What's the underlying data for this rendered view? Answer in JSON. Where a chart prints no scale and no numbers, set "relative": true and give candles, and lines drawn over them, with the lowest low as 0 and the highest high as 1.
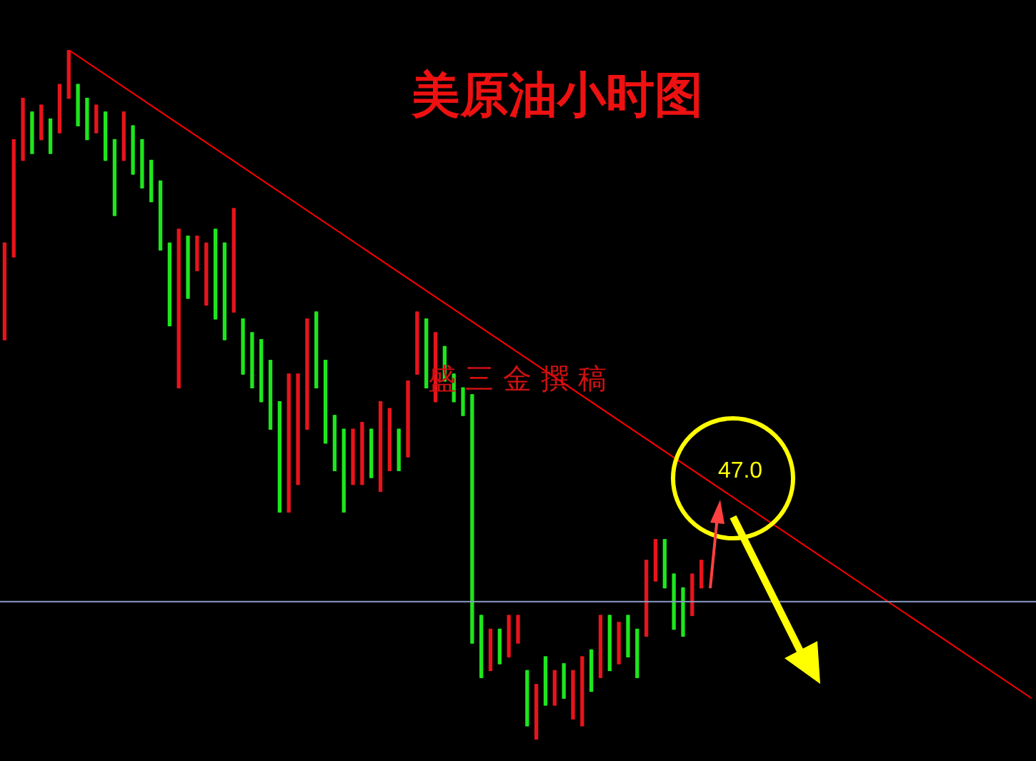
{
  "chart_data": {
    "type": "candlestick",
    "title": "美原油小时图",
    "annotations": [
      "盛三金撰稿",
      "47.0"
    ],
    "relative": true,
    "legend": false,
    "tick_labels": false,
    "categories": [
      null,
      null,
      null,
      null,
      null,
      null,
      null,
      null,
      null,
      null,
      null,
      null,
      null,
      null,
      null,
      null,
      null,
      null,
      null,
      null,
      null,
      null,
      null,
      null,
      null,
      null,
      null,
      null,
      null,
      null,
      null,
      null,
      null,
      null,
      null,
      null,
      null,
      null,
      null,
      null,
      null,
      null,
      null,
      null,
      null,
      null,
      null,
      null,
      null,
      null,
      null,
      null,
      null,
      null,
      null,
      null,
      null,
      null,
      null,
      null,
      null,
      null,
      null,
      null,
      null,
      null,
      null,
      null,
      null,
      null,
      null,
      null,
      null,
      null,
      null,
      null,
      null,
      null,
      null,
      null,
      null,
      null,
      null,
      null,
      null,
      null,
      null,
      null,
      null,
      null,
      null,
      null,
      null,
      null,
      null,
      null,
      null,
      null,
      null,
      null,
      null,
      null,
      null,
      null,
      null,
      null,
      null,
      null,
      null,
      null,
      null,
      null,
      null
    ],
    "ohlc": [
      [
        0.58,
        0.72,
        0.58,
        0.72
      ],
      [
        0.7,
        0.87,
        0.7,
        0.87
      ],
      [
        0.84,
        0.93,
        0.84,
        0.93
      ],
      [
        0.91,
        0.91,
        0.85,
        0.85
      ],
      [
        0.87,
        0.92,
        0.87,
        0.92
      ],
      [
        0.9,
        0.9,
        0.85,
        0.85
      ],
      [
        0.88,
        0.95,
        0.88,
        0.95
      ],
      [
        0.93,
        1,
        0.93,
        1
      ],
      [
        0.95,
        0.95,
        0.89,
        0.89
      ],
      [
        0.93,
        0.93,
        0.87,
        0.87
      ],
      [
        0.88,
        0.92,
        0.88,
        0.92
      ],
      [
        0.91,
        0.91,
        0.84,
        0.84
      ],
      [
        0.87,
        0.87,
        0.76,
        0.76
      ],
      [
        0.84,
        0.91,
        0.84,
        0.91
      ],
      [
        0.89,
        0.89,
        0.82,
        0.82
      ],
      [
        0.87,
        0.87,
        0.8,
        0.8
      ],
      [
        0.84,
        0.84,
        0.78,
        0.78
      ],
      [
        0.81,
        0.81,
        0.71,
        0.71
      ],
      [
        0.72,
        0.72,
        0.6,
        0.6
      ],
      [
        0.51,
        0.74,
        0.51,
        0.74
      ],
      [
        0.73,
        0.73,
        0.64,
        0.64
      ],
      [
        0.68,
        0.73,
        0.68,
        0.73
      ],
      [
        0.63,
        0.72,
        0.63,
        0.72
      ],
      [
        0.74,
        0.74,
        0.61,
        0.61
      ],
      [
        0.72,
        0.72,
        0.58,
        0.58
      ],
      [
        0.62,
        0.77,
        0.62,
        0.77
      ],
      [
        0.61,
        0.61,
        0.53,
        0.53
      ],
      [
        0.59,
        0.59,
        0.51,
        0.51
      ],
      [
        0.58,
        0.58,
        0.49,
        0.49
      ],
      [
        0.55,
        0.55,
        0.45,
        0.45
      ],
      [
        0.49,
        0.49,
        0.33,
        0.33
      ],
      [
        0.33,
        0.53,
        0.33,
        0.53
      ],
      [
        0.37,
        0.53,
        0.37,
        0.53
      ],
      [
        0.45,
        0.61,
        0.45,
        0.61
      ],
      [
        0.62,
        0.62,
        0.51,
        0.51
      ],
      [
        0.55,
        0.55,
        0.43,
        0.43
      ],
      [
        0.47,
        0.47,
        0.39,
        0.39
      ],
      [
        0.45,
        0.45,
        0.33,
        0.33
      ],
      [
        0.37,
        0.45,
        0.37,
        0.45
      ],
      [
        0.37,
        0.46,
        0.37,
        0.46
      ],
      [
        0.45,
        0.45,
        0.38,
        0.38
      ],
      [
        0.36,
        0.49,
        0.36,
        0.49
      ],
      [
        0.39,
        0.48,
        0.39,
        0.48
      ],
      [
        0.45,
        0.45,
        0.39,
        0.39
      ],
      [
        0.41,
        0.52,
        0.41,
        0.52
      ],
      [
        0.53,
        0.62,
        0.53,
        0.62
      ],
      [
        0.61,
        0.61,
        0.51,
        0.51
      ],
      [
        0.49,
        0.59,
        0.49,
        0.59
      ],
      [
        0.57,
        0.57,
        0.52,
        0.52
      ],
      [
        0.53,
        0.53,
        0.49,
        0.49
      ],
      [
        0.51,
        0.51,
        0.47,
        0.47
      ],
      [
        0.5,
        0.5,
        0.14,
        0.14
      ],
      [
        0.18,
        0.18,
        0.09,
        0.09
      ],
      [
        0.1,
        0.16,
        0.1,
        0.16
      ],
      [
        0.16,
        0.16,
        0.11,
        0.11
      ],
      [
        0.12,
        0.18,
        0.12,
        0.18
      ],
      [
        0.14,
        0.18,
        0.14,
        0.18
      ],
      [
        0.1,
        0.1,
        0.02,
        0.02
      ],
      [
        0,
        0.08,
        0,
        0.08
      ],
      [
        0.12,
        0.12,
        0.05,
        0.05
      ],
      [
        0.05,
        0.1,
        0.05,
        0.1
      ],
      [
        0.11,
        0.11,
        0.06,
        0.06
      ],
      [
        0.03,
        0.1,
        0.03,
        0.1
      ],
      [
        0.02,
        0.12,
        0.02,
        0.12
      ],
      [
        0.13,
        0.13,
        0.07,
        0.07
      ],
      [
        0.09,
        0.18,
        0.09,
        0.18
      ],
      [
        0.18,
        0.18,
        0.1,
        0.1
      ],
      [
        0.11,
        0.17,
        0.11,
        0.17
      ],
      [
        0.18,
        0.18,
        0.12,
        0.12
      ],
      [
        0.16,
        0.16,
        0.09,
        0.09
      ],
      [
        0.15,
        0.26,
        0.15,
        0.26
      ],
      [
        0.23,
        0.29,
        0.23,
        0.29
      ],
      [
        0.29,
        0.29,
        0.22,
        0.22
      ],
      [
        0.24,
        0.24,
        0.16,
        0.16
      ],
      [
        0.22,
        0.22,
        0.15,
        0.15
      ],
      [
        0.18,
        0.24,
        0.18,
        0.24
      ],
      [
        0.22,
        0.26,
        0.22,
        0.26
      ],
      null,
      null,
      null,
      null,
      null,
      null,
      null,
      null,
      null,
      null,
      null,
      null,
      null,
      null,
      null,
      null,
      null,
      null,
      null,
      null,
      null,
      null,
      null,
      null,
      null,
      null,
      null,
      null,
      null,
      null,
      null,
      null,
      null,
      null,
      null,
      null
    ],
    "colors": [
      "#e8141c",
      "#e8141c",
      "#e8141c",
      "#1ee61e",
      "#e8141c",
      "#1ee61e",
      "#e8141c",
      "#e8141c",
      "#1ee61e",
      "#1ee61e",
      "#e8141c",
      "#1ee61e",
      "#1ee61e",
      "#e8141c",
      "#1ee61e",
      "#1ee61e",
      "#1ee61e",
      "#1ee61e",
      "#1ee61e",
      "#e8141c",
      "#1ee61e",
      "#e8141c",
      "#e8141c",
      "#1ee61e",
      "#1ee61e",
      "#e8141c",
      "#1ee61e",
      "#1ee61e",
      "#1ee61e",
      "#1ee61e",
      "#1ee61e",
      "#e8141c",
      "#e8141c",
      "#e8141c",
      "#1ee61e",
      "#1ee61e",
      "#1ee61e",
      "#1ee61e",
      "#e8141c",
      "#e8141c",
      "#1ee61e",
      "#e8141c",
      "#e8141c",
      "#1ee61e",
      "#e8141c",
      "#e8141c",
      "#1ee61e",
      "#e8141c",
      "#1ee61e",
      "#1ee61e",
      "#1ee61e",
      "#1ee61e",
      "#1ee61e",
      "#e8141c",
      "#1ee61e",
      "#e8141c",
      "#e8141c",
      "#1ee61e",
      "#e8141c",
      "#1ee61e",
      "#e8141c",
      "#1ee61e",
      "#e8141c",
      "#e8141c",
      "#1ee61e",
      "#e8141c",
      "#1ee61e",
      "#e8141c",
      "#1ee61e",
      "#1ee61e",
      "#e8141c",
      "#e8141c",
      "#1ee61e",
      "#1ee61e",
      "#1ee61e",
      "#e8141c",
      "#e8141c",
      null,
      null,
      null,
      null,
      null,
      null,
      null,
      null,
      null,
      null,
      null,
      null,
      null,
      null,
      null,
      null,
      null,
      null,
      null,
      null,
      null,
      null,
      null,
      null,
      null,
      null,
      null,
      null,
      null,
      null,
      null,
      null,
      null,
      null,
      null,
      null
    ],
    "series": [
      {
        "type": "line",
        "color": "#ff0000",
        "values": [
          null,
          null,
          null,
          null,
          null,
          null,
          null,
          1,
          null,
          null,
          null,
          null,
          null,
          null,
          null,
          null,
          null,
          null,
          null,
          null,
          null,
          null,
          null,
          null,
          null,
          null,
          null,
          null,
          null,
          null,
          null,
          null,
          null,
          null,
          null,
          null,
          null,
          null,
          null,
          null,
          null,
          null,
          null,
          null,
          null,
          null,
          null,
          null,
          null,
          null,
          null,
          null,
          null,
          null,
          null,
          null,
          null,
          null,
          null,
          null,
          null,
          null,
          null,
          null,
          null,
          null,
          null,
          null,
          null,
          null,
          null,
          null,
          null,
          null,
          null,
          null,
          null,
          null,
          null,
          null,
          null,
          null,
          null,
          null,
          null,
          null,
          null,
          null,
          null,
          null,
          null,
          null,
          null,
          null,
          null,
          null,
          null,
          null,
          null,
          null,
          null,
          null,
          null,
          null,
          null,
          null,
          null,
          null,
          null,
          null,
          null,
          null,
          0.06
        ]
      }
    ],
    "ref_lines": [
      {
        "axis": "y",
        "value": 0.2,
        "color": "#8c9cc8"
      }
    ]
  }
}
